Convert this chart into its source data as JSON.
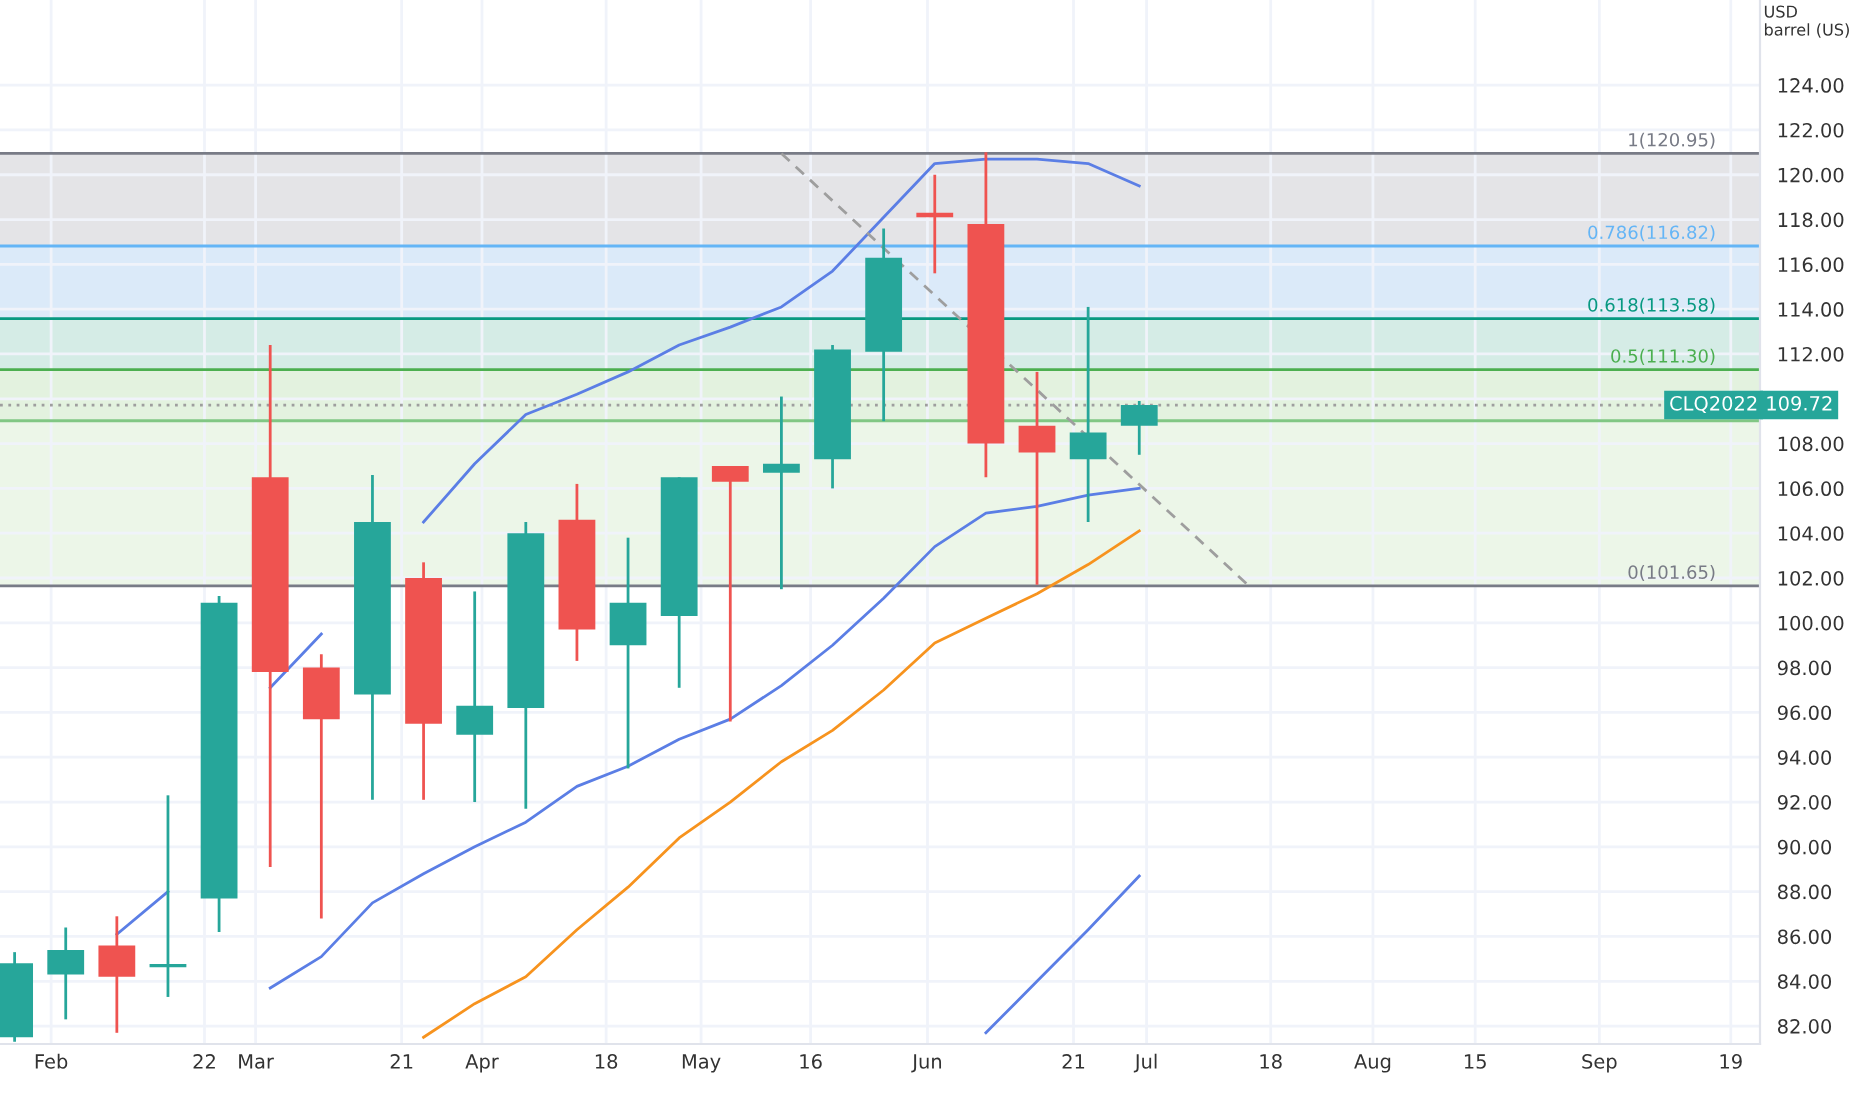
{
  "chart_data": {
    "type": "candlestick",
    "ylabel": "USD\nbarrel (US)",
    "x": [
      "2022-01-27",
      "2022-02-03",
      "2022-02-10",
      "2022-02-17",
      "2022-02-24",
      "2022-03-03",
      "2022-03-10",
      "2022-03-17",
      "2022-03-24",
      "2022-03-31",
      "2022-04-07",
      "2022-04-14",
      "2022-04-21",
      "2022-04-28",
      "2022-05-05",
      "2022-05-12",
      "2022-05-19",
      "2022-05-26",
      "2022-06-02",
      "2022-06-09",
      "2022-06-16",
      "2022-06-23",
      "2022-06-30"
    ],
    "ohlc": [
      [
        81.5,
        85.3,
        81.3,
        84.8
      ],
      [
        84.3,
        86.4,
        82.3,
        85.4
      ],
      [
        85.6,
        86.9,
        81.7,
        84.2
      ],
      [
        84.7,
        92.3,
        83.3,
        84.7
      ],
      [
        87.7,
        101.2,
        86.2,
        100.9
      ],
      [
        106.5,
        112.4,
        89.1,
        97.8
      ],
      [
        98.0,
        98.6,
        86.8,
        95.7
      ],
      [
        96.8,
        106.6,
        92.1,
        104.5
      ],
      [
        102.0,
        102.7,
        92.1,
        95.5
      ],
      [
        95.0,
        101.4,
        92.0,
        96.3
      ],
      [
        96.2,
        104.5,
        91.7,
        104.0
      ],
      [
        104.6,
        106.2,
        98.3,
        99.7
      ],
      [
        99.0,
        103.8,
        93.5,
        100.9
      ],
      [
        100.3,
        106.5,
        97.1,
        106.5
      ],
      [
        107.0,
        107.0,
        95.6,
        106.3
      ],
      [
        106.7,
        110.1,
        101.5,
        107.1
      ],
      [
        107.3,
        112.4,
        106.0,
        112.2
      ],
      [
        112.1,
        117.6,
        109.0,
        116.3
      ],
      [
        118.3,
        120.0,
        115.6,
        118.1
      ],
      [
        117.8,
        121.0,
        106.5,
        108.0
      ],
      [
        108.8,
        111.2,
        101.7,
        107.6
      ],
      [
        107.3,
        114.1,
        104.5,
        108.5
      ],
      [
        108.8,
        109.9,
        107.5,
        109.72
      ]
    ],
    "colors": [
      "#26a69a",
      "#26a69a",
      "#ef5350",
      "#26a69a",
      "#26a69a",
      "#ef5350",
      "#ef5350",
      "#26a69a",
      "#ef5350",
      "#26a69a",
      "#26a69a",
      "#ef5350",
      "#26a69a",
      "#26a69a",
      "#ef5350",
      "#26a69a",
      "#26a69a",
      "#26a69a",
      "#ef5350",
      "#ef5350",
      "#ef5350",
      "#26a69a",
      "#26a69a"
    ],
    "series": [
      {
        "type": "line",
        "color": "#5b7ee5",
        "values": [
          null,
          null,
          86.1,
          88.0,
          null,
          97.1,
          99.5,
          null,
          104.5,
          107.1,
          109.3,
          110.2,
          111.2,
          112.4,
          113.2,
          114.1,
          115.7,
          118.1,
          120.5,
          120.7,
          120.7,
          120.5,
          119.5
        ]
      },
      {
        "type": "line",
        "color": "#5b7ee5",
        "values": [
          null,
          null,
          null,
          null,
          null,
          83.7,
          85.1,
          87.5,
          88.8,
          90.0,
          91.1,
          92.7,
          93.6,
          94.8,
          95.7,
          97.2,
          99.0,
          101.1,
          103.4,
          104.9,
          105.2,
          105.7,
          106.0
        ]
      },
      {
        "type": "line",
        "color": "#5b7ee5",
        "values": [
          null,
          null,
          null,
          null,
          null,
          null,
          null,
          null,
          null,
          null,
          null,
          null,
          null,
          null,
          null,
          null,
          null,
          null,
          null,
          81.7,
          84.0,
          86.3,
          88.7
        ]
      },
      {
        "type": "line",
        "color": "#f7931e",
        "values": [
          null,
          null,
          null,
          null,
          null,
          null,
          null,
          null,
          81.5,
          83.0,
          84.2,
          86.3,
          88.2,
          90.4,
          92.0,
          93.8,
          95.2,
          97.0,
          99.1,
          100.2,
          101.3,
          102.6,
          104.1
        ]
      },
      {
        "type": "line",
        "color": "#9e9e9e",
        "line_style": "dashed",
        "x": [
          "2022-05-12",
          "2022-07-15"
        ],
        "values": [
          120.95,
          101.65
        ]
      }
    ],
    "ref_lines": [
      {
        "axis": "y",
        "value": 120.95,
        "label": "1(120.95)",
        "color": "#787b86"
      },
      {
        "axis": "y",
        "value": 116.82,
        "label": "0.786(116.82)",
        "color": "#64b5f6"
      },
      {
        "axis": "y",
        "value": 113.58,
        "label": "0.618(113.58)",
        "color": "#089981"
      },
      {
        "axis": "y",
        "value": 111.3,
        "label": "0.5(111.30)",
        "color": "#4caf50"
      },
      {
        "axis": "y",
        "value": 109.02,
        "label": null,
        "color": "#81c784"
      },
      {
        "axis": "y",
        "value": 101.65,
        "label": "0(101.65)",
        "color": "#787b86"
      },
      {
        "axis": "y",
        "value": 109.72,
        "label": null,
        "color": "#9e9e9e",
        "line_style": "dotted"
      }
    ],
    "bands": [
      {
        "axis": "y",
        "from": 116.82,
        "to": 120.95,
        "label": null,
        "color": "#e4e4e7"
      },
      {
        "axis": "y",
        "from": 113.58,
        "to": 116.82,
        "label": null,
        "color": "#dbeaf9"
      },
      {
        "axis": "y",
        "from": 111.3,
        "to": 113.58,
        "label": null,
        "color": "#d5ece6"
      },
      {
        "axis": "y",
        "from": 109.02,
        "to": 111.3,
        "label": null,
        "color": "#e3f2df"
      },
      {
        "axis": "y",
        "from": 101.65,
        "to": 109.02,
        "label": null,
        "color": "#ecf6e8"
      }
    ],
    "annotations": [
      {
        "text": "CLQ2022",
        "y": 109.72
      },
      {
        "text": "109.72",
        "y": 109.72
      }
    ],
    "xlim": [
      "2022-01-25",
      "2022-09-23"
    ],
    "ylim": [
      81.2,
      127.8
    ],
    "xticks": [
      {
        "value": "2022-02-01",
        "label": "Feb"
      },
      {
        "value": "2022-02-22",
        "label": "22"
      },
      {
        "value": "2022-03-01",
        "label": "Mar"
      },
      {
        "value": "2022-03-21",
        "label": "21"
      },
      {
        "value": "2022-04-01",
        "label": "Apr"
      },
      {
        "value": "2022-04-18",
        "label": "18"
      },
      {
        "value": "2022-05-01",
        "label": "May"
      },
      {
        "value": "2022-05-16",
        "label": "16"
      },
      {
        "value": "2022-06-01",
        "label": "Jun"
      },
      {
        "value": "2022-06-21",
        "label": "21"
      },
      {
        "value": "2022-07-01",
        "label": "Jul"
      },
      {
        "value": "2022-07-18",
        "label": "18"
      },
      {
        "value": "2022-08-01",
        "label": "Aug"
      },
      {
        "value": "2022-08-15",
        "label": "15"
      },
      {
        "value": "2022-09-01",
        "label": "Sep"
      },
      {
        "value": "2022-09-19",
        "label": "19"
      }
    ],
    "yticks": [
      {
        "value": 82,
        "label": "82.00"
      },
      {
        "value": 84,
        "label": "84.00"
      },
      {
        "value": 86,
        "label": "86.00"
      },
      {
        "value": 88,
        "label": "88.00"
      },
      {
        "value": 90,
        "label": "90.00"
      },
      {
        "value": 92,
        "label": "92.00"
      },
      {
        "value": 94,
        "label": "94.00"
      },
      {
        "value": 96,
        "label": "96.00"
      },
      {
        "value": 98,
        "label": "98.00"
      },
      {
        "value": 100,
        "label": "100.00"
      },
      {
        "value": 102,
        "label": "102.00"
      },
      {
        "value": 104,
        "label": "104.00"
      },
      {
        "value": 106,
        "label": "106.00"
      },
      {
        "value": 108,
        "label": "108.00"
      },
      {
        "value": 110,
        "label": null
      },
      {
        "value": 112,
        "label": "112.00"
      },
      {
        "value": 114,
        "label": "114.00"
      },
      {
        "value": 116,
        "label": "116.00"
      },
      {
        "value": 118,
        "label": "118.00"
      },
      {
        "value": 120,
        "label": "120.00"
      },
      {
        "value": 122,
        "label": "122.00"
      },
      {
        "value": 124,
        "label": "124.00"
      }
    ],
    "grid": true,
    "legend": false
  }
}
